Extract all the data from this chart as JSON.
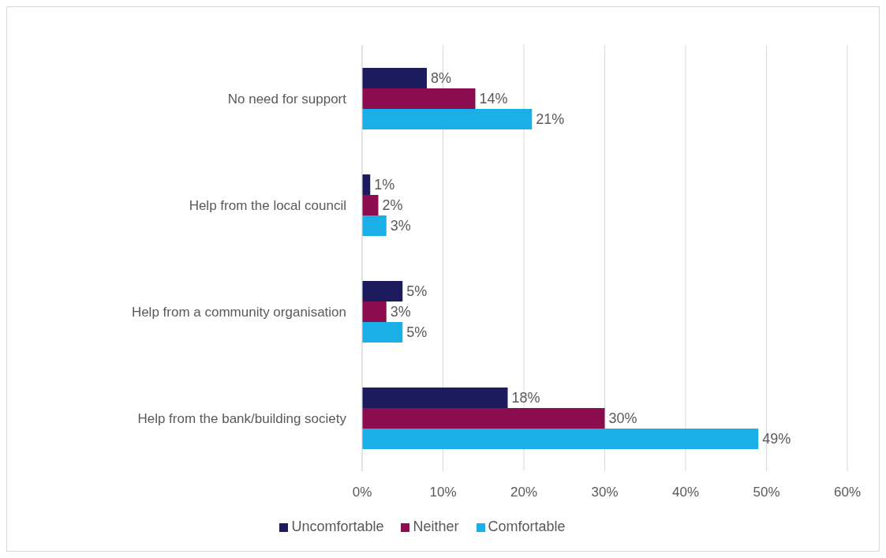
{
  "chart_data": {
    "type": "bar",
    "orientation": "horizontal",
    "categories": [
      "No need for support",
      "Help from the local council",
      "Help from a community organisation",
      "Help from the bank/building society"
    ],
    "series": [
      {
        "name": "Uncomfortable",
        "color": "#1b1b5e",
        "values": [
          8,
          1,
          5,
          18
        ],
        "value_labels": [
          "8%",
          "1%",
          "5%",
          "18%"
        ]
      },
      {
        "name": "Neither",
        "color": "#8c0c50",
        "values": [
          14,
          2,
          3,
          30
        ],
        "value_labels": [
          "14%",
          "2%",
          "3%",
          "30%"
        ]
      },
      {
        "name": "Comfortable",
        "color": "#1aafe6",
        "values": [
          21,
          3,
          5,
          49
        ],
        "value_labels": [
          "21%",
          "3%",
          "5%",
          "49%"
        ]
      }
    ],
    "xlim": [
      0,
      60
    ],
    "xticks": [
      {
        "value": 0,
        "label": "0%"
      },
      {
        "value": 10,
        "label": "10%"
      },
      {
        "value": 20,
        "label": "20%"
      },
      {
        "value": 30,
        "label": "30%"
      },
      {
        "value": 40,
        "label": "40%"
      },
      {
        "value": 50,
        "label": "50%"
      },
      {
        "value": 60,
        "label": "60%"
      }
    ],
    "grid": "x",
    "legend": "bottom"
  }
}
